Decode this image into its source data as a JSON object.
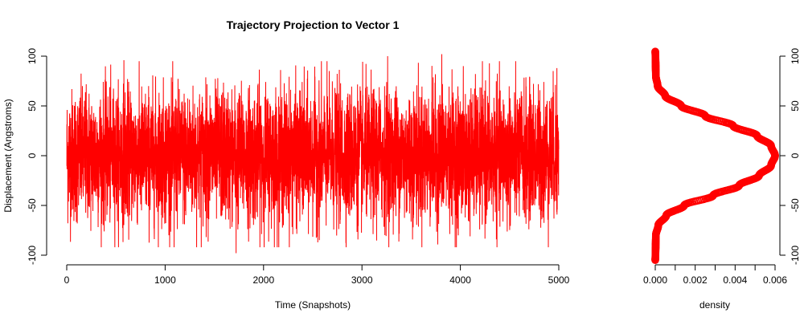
{
  "chart_data": [
    {
      "type": "line",
      "title": "Trajectory Projection to Vector 1",
      "xlabel": "Time (Snapshots)",
      "ylabel": "Displacement (Angstroms)",
      "xlim": [
        0,
        5000
      ],
      "ylim": [
        -100,
        100
      ],
      "xticks": [
        "0",
        "1000",
        "2000",
        "3000",
        "4000",
        "5000"
      ],
      "yticks": [
        "-100",
        "-50",
        "0",
        "50",
        "100"
      ],
      "series": [
        {
          "color": "#ff0000",
          "n_points": 5000,
          "distribution": "approximately normal, mean ~0, sd ~33",
          "min": -98,
          "max": 102,
          "sample_peaks": [
            {
              "x": 580,
              "y": 96
            },
            {
              "x": 1090,
              "y": -92
            },
            {
              "x": 1720,
              "y": -98
            },
            {
              "x": 3260,
              "y": 100
            },
            {
              "x": 3810,
              "y": 102
            },
            {
              "x": 4980,
              "y": 88
            }
          ]
        }
      ]
    },
    {
      "type": "line",
      "xlabel": "density",
      "ylabel": "",
      "xlim": [
        0,
        0.006
      ],
      "ylim": [
        -100,
        100
      ],
      "xticks": [
        "0.000",
        "0.002",
        "0.004",
        "0.006"
      ],
      "yticks": [
        "-100",
        "-50",
        "0",
        "50",
        "100"
      ],
      "y_axis_side": "right",
      "series": [
        {
          "color": "#ff0000",
          "style": "points",
          "y": [
            -105,
            -100,
            -90,
            -80,
            -70,
            -60,
            -50,
            -40,
            -30,
            -20,
            -10,
            0,
            10,
            20,
            30,
            40,
            50,
            60,
            70,
            80,
            90,
            100,
            105
          ],
          "x": [
            0.0,
            1e-05,
            2e-05,
            3e-05,
            0.00015,
            0.00055,
            0.00145,
            0.0029,
            0.0042,
            0.0052,
            0.0058,
            0.006,
            0.0058,
            0.0051,
            0.0039,
            0.0025,
            0.0013,
            0.0005,
            0.00012,
            3e-05,
            2e-05,
            1e-05,
            0.0
          ]
        }
      ]
    }
  ]
}
